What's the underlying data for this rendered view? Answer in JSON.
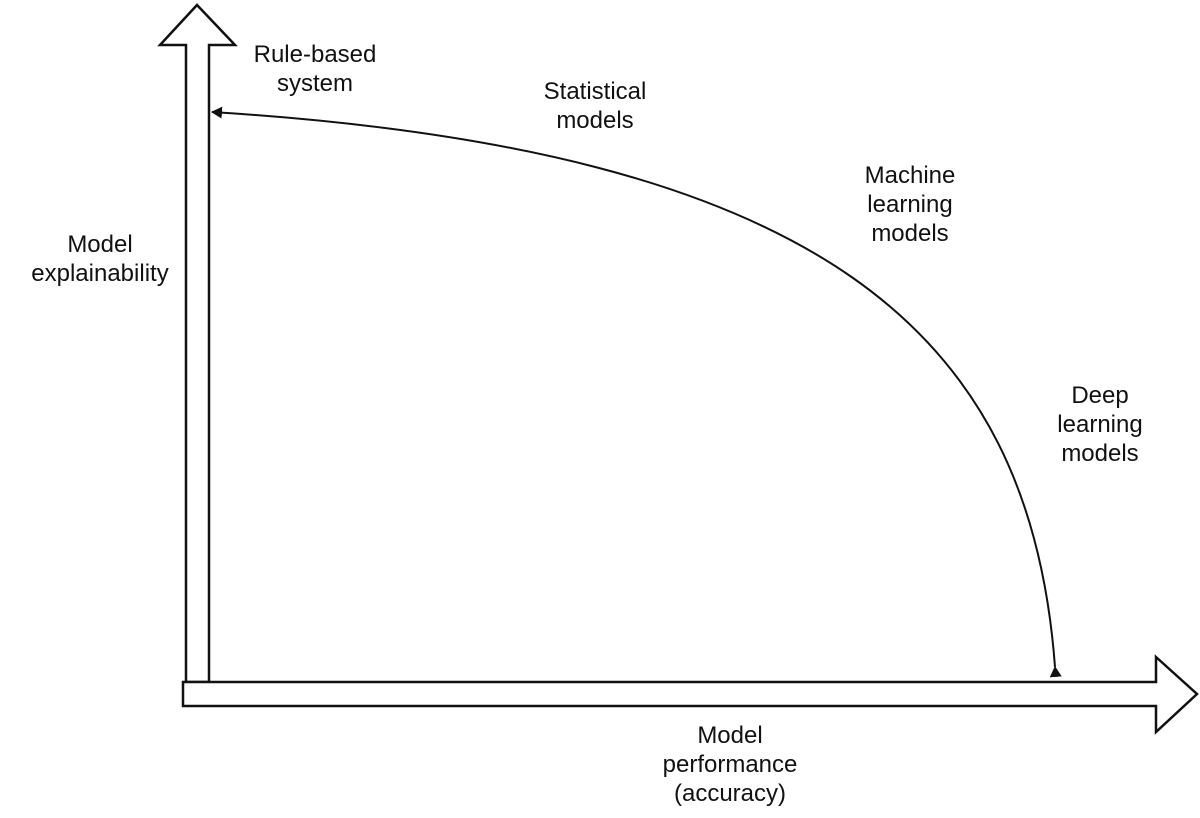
{
  "axes": {
    "y_label": [
      "Model",
      "explainability"
    ],
    "x_label": [
      "Model",
      "performance",
      "(accuracy)"
    ]
  },
  "curve_labels": {
    "rule_based": [
      "Rule-based",
      "system"
    ],
    "statistical": [
      "Statistical",
      "models"
    ],
    "machine_learning": [
      "Machine",
      "learning",
      "models"
    ],
    "deep_learning": [
      "Deep",
      "learning",
      "models"
    ]
  },
  "colors": {
    "stroke": "#111111",
    "background": "#ffffff"
  }
}
